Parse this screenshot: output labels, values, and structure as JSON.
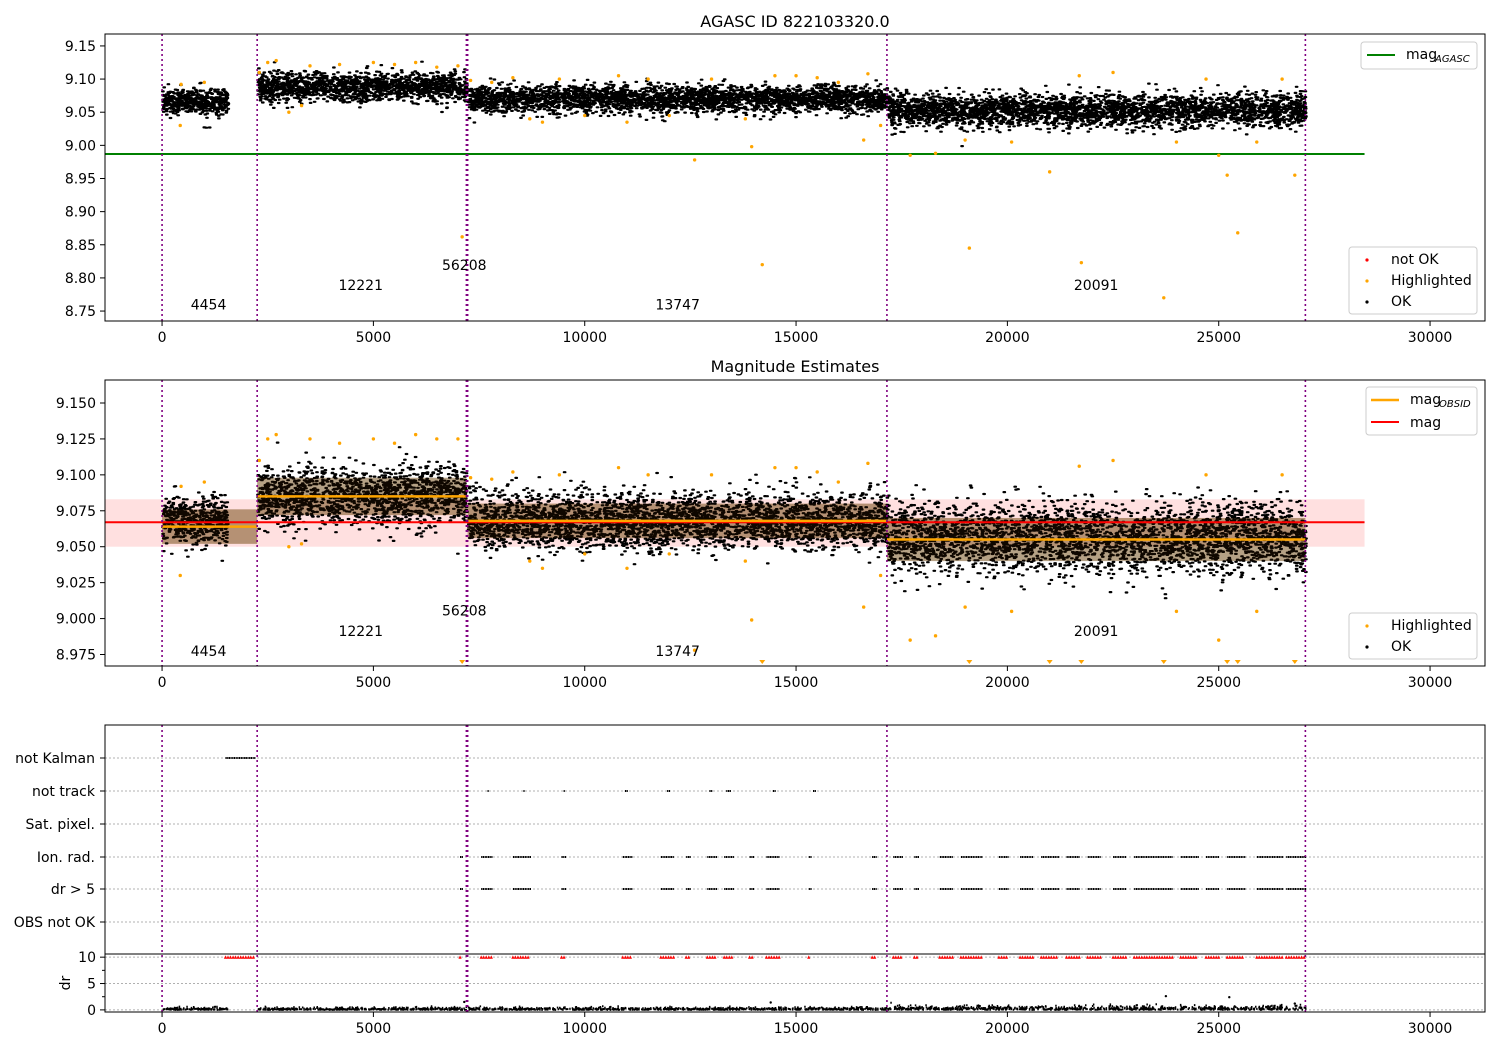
{
  "chart_data": [
    {
      "type": "scatter",
      "title": "AGASC ID 822103320.0",
      "xlim": [
        -1350,
        31300
      ],
      "ylim": [
        8.735,
        9.168
      ],
      "xticks": [
        0,
        5000,
        10000,
        15000,
        20000,
        25000,
        30000
      ],
      "xtick_labels": [
        "0",
        "5000",
        "10000",
        "15000",
        "20000",
        "25000",
        "30000"
      ],
      "yticks": [
        8.75,
        8.8,
        8.85,
        8.9,
        8.95,
        9.0,
        9.05,
        9.1,
        9.15
      ],
      "ytick_labels": [
        "8.75",
        "8.80",
        "8.85",
        "8.90",
        "8.95",
        "9.00",
        "9.05",
        "9.10",
        "9.15"
      ],
      "obsid_boundaries": [
        0,
        2250,
        7200,
        7230,
        17150,
        27050
      ],
      "obsid_labels": [
        {
          "text": "4454",
          "x": 1100,
          "y": 8.752
        },
        {
          "text": "12221",
          "x": 4700,
          "y": 8.782
        },
        {
          "text": "56208",
          "x": 7150,
          "y": 8.812
        },
        {
          "text": "13747",
          "x": 12200,
          "y": 8.752
        },
        {
          "text": "20091",
          "x": 22100,
          "y": 8.782
        }
      ],
      "reference_lines": [
        {
          "name": "mag_AGASC",
          "y": 8.987,
          "x_range": [
            -1350,
            28450
          ],
          "color": "#008000"
        }
      ],
      "ok_segments": [
        {
          "x": [
            0,
            1550
          ],
          "center": 9.068,
          "spread": 0.012
        },
        {
          "x": [
            2250,
            7200
          ],
          "center": 9.087,
          "spread": 0.013
        },
        {
          "x": [
            7230,
            17150
          ],
          "center": 9.071,
          "spread": 0.012
        },
        {
          "x": [
            17150,
            27050
          ],
          "center": 9.052,
          "spread": 0.015
        }
      ],
      "highlighted_points": [
        [
          430,
          9.03
        ],
        [
          450,
          9.092
        ],
        [
          1000,
          9.095
        ],
        [
          2300,
          9.11
        ],
        [
          2500,
          9.125
        ],
        [
          2700,
          9.128
        ],
        [
          3000,
          9.05
        ],
        [
          3300,
          9.06
        ],
        [
          3500,
          9.12
        ],
        [
          4200,
          9.122
        ],
        [
          5000,
          9.125
        ],
        [
          5500,
          9.122
        ],
        [
          6000,
          9.125
        ],
        [
          6500,
          9.118
        ],
        [
          7000,
          9.12
        ],
        [
          7100,
          8.862
        ],
        [
          7300,
          9.098
        ],
        [
          7800,
          9.095
        ],
        [
          8300,
          9.102
        ],
        [
          8700,
          9.04
        ],
        [
          9000,
          9.035
        ],
        [
          9400,
          9.1
        ],
        [
          10000,
          9.045
        ],
        [
          10800,
          9.105
        ],
        [
          11000,
          9.035
        ],
        [
          11500,
          9.1
        ],
        [
          12000,
          9.045
        ],
        [
          12600,
          8.978
        ],
        [
          13000,
          9.1
        ],
        [
          13800,
          9.04
        ],
        [
          13950,
          8.998
        ],
        [
          14200,
          8.82
        ],
        [
          14500,
          9.105
        ],
        [
          15000,
          9.105
        ],
        [
          15500,
          9.102
        ],
        [
          16000,
          9.095
        ],
        [
          16600,
          9.008
        ],
        [
          16700,
          9.108
        ],
        [
          17000,
          9.03
        ],
        [
          17700,
          8.985
        ],
        [
          18300,
          8.988
        ],
        [
          19000,
          9.008
        ],
        [
          19100,
          8.845
        ],
        [
          20100,
          9.005
        ],
        [
          21000,
          8.96
        ],
        [
          21700,
          9.105
        ],
        [
          21750,
          8.823
        ],
        [
          22500,
          9.11
        ],
        [
          23700,
          8.77
        ],
        [
          24000,
          9.005
        ],
        [
          24700,
          9.1
        ],
        [
          25000,
          8.985
        ],
        [
          25200,
          8.955
        ],
        [
          25450,
          8.868
        ],
        [
          25900,
          9.005
        ],
        [
          26500,
          9.1
        ],
        [
          26800,
          8.955
        ]
      ],
      "legend": [
        {
          "label": "mag",
          "subscript": "AGASC",
          "marker": "line",
          "color": "#008000"
        },
        {
          "label": "not OK",
          "marker": "dot",
          "color": "#ff0000"
        },
        {
          "label": "Highlighted",
          "marker": "dot",
          "color": "#ffa500"
        },
        {
          "label": "OK",
          "marker": "dot",
          "color": "#000000"
        }
      ],
      "legend_placement": "top-right and lower-right"
    },
    {
      "type": "scatter",
      "title": "Magnitude Estimates",
      "xlim": [
        -1350,
        31300
      ],
      "ylim": [
        8.967,
        9.166
      ],
      "xticks": [
        0,
        5000,
        10000,
        15000,
        20000,
        25000,
        30000
      ],
      "xtick_labels": [
        "0",
        "5000",
        "10000",
        "15000",
        "20000",
        "25000",
        "30000"
      ],
      "yticks": [
        8.975,
        9.0,
        9.025,
        9.05,
        9.075,
        9.1,
        9.125,
        9.15
      ],
      "ytick_labels": [
        "8.975",
        "9.000",
        "9.025",
        "9.050",
        "9.075",
        "9.100",
        "9.125",
        "9.150"
      ],
      "obsid_boundaries": [
        0,
        2250,
        7200,
        7230,
        17150,
        27050
      ],
      "obsid_labels": [
        {
          "text": "4454",
          "x": 1100,
          "y": 8.974
        },
        {
          "text": "12221",
          "x": 4700,
          "y": 8.988
        },
        {
          "text": "56208",
          "x": 7150,
          "y": 9.002
        },
        {
          "text": "13747",
          "x": 12200,
          "y": 8.974
        },
        {
          "text": "20091",
          "x": 22100,
          "y": 8.988
        }
      ],
      "mag": {
        "y": 9.067,
        "band": [
          9.05,
          9.083
        ],
        "x_range": [
          -1350,
          28450
        ],
        "color": "#ff0000"
      },
      "mag_obsid": [
        {
          "x": [
            0,
            2250
          ],
          "y": 9.064,
          "band": [
            9.052,
            9.076
          ]
        },
        {
          "x": [
            2250,
            7200
          ],
          "y": 9.085,
          "band": [
            9.072,
            9.098
          ]
        },
        {
          "x": [
            7230,
            17150
          ],
          "y": 9.068,
          "band": [
            9.056,
            9.08
          ]
        },
        {
          "x": [
            17150,
            27050
          ],
          "y": 9.055,
          "band": [
            9.04,
            9.07
          ]
        }
      ],
      "ok_segments": [
        {
          "x": [
            0,
            1550
          ],
          "center": 9.065,
          "spread": 0.01
        },
        {
          "x": [
            2250,
            7200
          ],
          "center": 9.085,
          "spread": 0.012
        },
        {
          "x": [
            7230,
            17150
          ],
          "center": 9.068,
          "spread": 0.011
        },
        {
          "x": [
            17150,
            27050
          ],
          "center": 9.054,
          "spread": 0.015
        }
      ],
      "highlighted_points": [
        [
          430,
          9.03
        ],
        [
          450,
          9.092
        ],
        [
          1000,
          9.095
        ],
        [
          2300,
          9.11
        ],
        [
          2500,
          9.125
        ],
        [
          2700,
          9.128
        ],
        [
          3000,
          9.05
        ],
        [
          3300,
          9.052
        ],
        [
          3500,
          9.125
        ],
        [
          4200,
          9.122
        ],
        [
          5000,
          9.125
        ],
        [
          5500,
          9.122
        ],
        [
          6000,
          9.128
        ],
        [
          6500,
          9.125
        ],
        [
          7000,
          9.125
        ],
        [
          7300,
          9.098
        ],
        [
          7800,
          9.097
        ],
        [
          8300,
          9.102
        ],
        [
          8700,
          9.04
        ],
        [
          9000,
          9.035
        ],
        [
          9400,
          9.1
        ],
        [
          10000,
          9.045
        ],
        [
          10800,
          9.105
        ],
        [
          11000,
          9.035
        ],
        [
          11500,
          9.1
        ],
        [
          12000,
          9.045
        ],
        [
          12600,
          8.978
        ],
        [
          13000,
          9.1
        ],
        [
          13800,
          9.04
        ],
        [
          13950,
          8.999
        ],
        [
          14500,
          9.105
        ],
        [
          15000,
          9.105
        ],
        [
          15500,
          9.102
        ],
        [
          16000,
          9.095
        ],
        [
          16600,
          9.008
        ],
        [
          16700,
          9.108
        ],
        [
          17000,
          9.03
        ],
        [
          17700,
          8.985
        ],
        [
          18300,
          8.988
        ],
        [
          19000,
          9.008
        ],
        [
          20100,
          9.005
        ],
        [
          21700,
          9.106
        ],
        [
          22500,
          9.11
        ],
        [
          24000,
          9.005
        ],
        [
          24700,
          9.1
        ],
        [
          25000,
          8.985
        ],
        [
          25900,
          9.005
        ],
        [
          26500,
          9.1
        ]
      ],
      "below_range_markers": [
        7100,
        14200,
        19100,
        21000,
        21750,
        23700,
        25200,
        25450,
        26800
      ],
      "legend": [
        {
          "label": "mag",
          "subscript": "OBSID",
          "marker": "line",
          "color": "#ffa500"
        },
        {
          "label": "mag",
          "marker": "line",
          "color": "#ff0000"
        },
        {
          "label": "Highlighted",
          "marker": "dot",
          "color": "#ffa500"
        },
        {
          "label": "OK",
          "marker": "dot",
          "color": "#000000"
        }
      ],
      "legend_placement": "top-right and lower-right"
    },
    {
      "type": "scatter",
      "title": "",
      "xlim": [
        -1350,
        31300
      ],
      "xticks": [
        0,
        5000,
        10000,
        15000,
        20000,
        25000,
        30000
      ],
      "xtick_labels": [
        "0",
        "5000",
        "10000",
        "15000",
        "20000",
        "25000",
        "30000"
      ],
      "flag_rows": [
        "not Kalman",
        "not track",
        "Sat. pixel.",
        "Ion. rad.",
        "dr > 5",
        "OBS not OK"
      ],
      "obsid_boundaries": [
        0,
        2250,
        7200,
        7230,
        17150,
        27050
      ],
      "flags": {
        "not Kalman": [
          [
            1500,
            2200
          ]
        ],
        "not track": [
          [
            7700,
            7700
          ],
          [
            8550,
            8550
          ],
          [
            9500,
            9500
          ],
          [
            10950,
            11000
          ],
          [
            11950,
            12000
          ],
          [
            12950,
            13000
          ],
          [
            13350,
            13450
          ],
          [
            14450,
            14500
          ],
          [
            15400,
            15450
          ]
        ],
        "Sat. pixel.": [],
        "Ion. rad.": [
          [
            7050,
            7100
          ],
          [
            7550,
            7800
          ],
          [
            8300,
            8700
          ],
          [
            9450,
            9550
          ],
          [
            10900,
            11100
          ],
          [
            11800,
            12100
          ],
          [
            12400,
            12500
          ],
          [
            12900,
            13100
          ],
          [
            13300,
            13500
          ],
          [
            13900,
            14000
          ],
          [
            14300,
            14600
          ],
          [
            15300,
            15350
          ],
          [
            16800,
            16900
          ],
          [
            17300,
            17500
          ],
          [
            17800,
            17900
          ],
          [
            18400,
            18700
          ],
          [
            18900,
            19400
          ],
          [
            19800,
            20000
          ],
          [
            20300,
            20600
          ],
          [
            20800,
            21200
          ],
          [
            21400,
            21700
          ],
          [
            21900,
            22200
          ],
          [
            22500,
            22800
          ],
          [
            23000,
            23900
          ],
          [
            24100,
            24500
          ],
          [
            24700,
            25000
          ],
          [
            25200,
            25600
          ],
          [
            25900,
            26500
          ],
          [
            26600,
            27050
          ]
        ],
        "dr > 5": [
          [
            7050,
            7100
          ],
          [
            7550,
            7800
          ],
          [
            8300,
            8700
          ],
          [
            9450,
            9550
          ],
          [
            10900,
            11100
          ],
          [
            11800,
            12100
          ],
          [
            12400,
            12500
          ],
          [
            12900,
            13100
          ],
          [
            13300,
            13500
          ],
          [
            13900,
            14000
          ],
          [
            14300,
            14600
          ],
          [
            15300,
            15350
          ],
          [
            16800,
            16900
          ],
          [
            17300,
            17500
          ],
          [
            17800,
            17900
          ],
          [
            18400,
            18700
          ],
          [
            18900,
            19400
          ],
          [
            19800,
            20000
          ],
          [
            20300,
            20600
          ],
          [
            20800,
            21200
          ],
          [
            21400,
            21700
          ],
          [
            21900,
            22200
          ],
          [
            22500,
            22800
          ],
          [
            23000,
            23900
          ],
          [
            24100,
            24500
          ],
          [
            24700,
            25000
          ],
          [
            25200,
            25600
          ],
          [
            25900,
            26500
          ],
          [
            26600,
            27050
          ]
        ],
        "OBS not OK": []
      },
      "dr": {
        "ylabel": "dr",
        "yticks": [
          0,
          5,
          10
        ],
        "ytick_labels": [
          "0",
          "5",
          "10"
        ],
        "ylim": [
          -0.4,
          10.6
        ],
        "clipped_value": 10,
        "outliers": [
          [
            7150,
            1.5
          ],
          [
            14400,
            1.4
          ],
          [
            23750,
            2.6
          ],
          [
            25250,
            2.4
          ],
          [
            26800,
            1.2
          ]
        ]
      }
    }
  ]
}
